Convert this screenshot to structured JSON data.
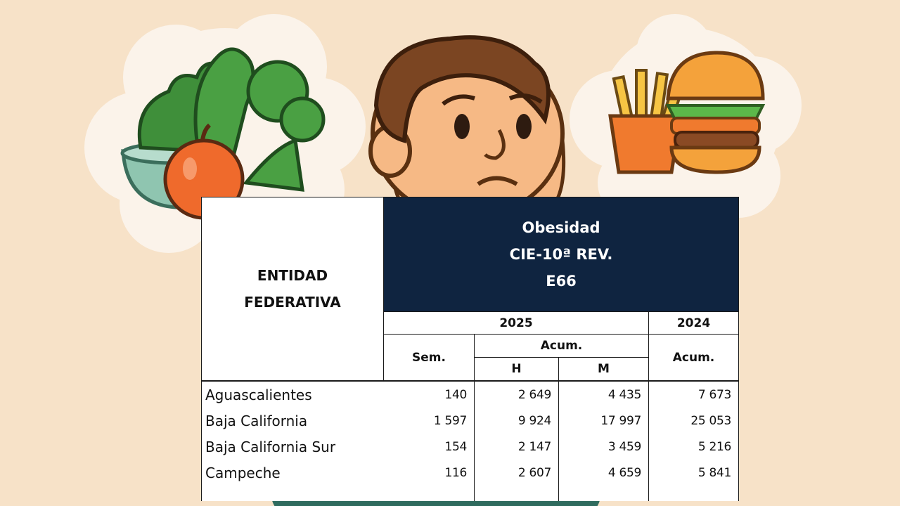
{
  "table": {
    "entity_header_line1": "ENTIDAD",
    "entity_header_line2": "FEDERATIVA",
    "disease_name": "Obesidad",
    "classification": "CIE-10ª REV.",
    "code": "E66",
    "year_current": "2025",
    "year_previous": "2024",
    "col_sem": "Sem.",
    "col_acum": "Acum.",
    "col_h": "H",
    "col_m": "M",
    "col_acum_prev": "Acum.",
    "rows": [
      {
        "entidad": "Aguascalientes",
        "sem": "140",
        "h": "2 649",
        "m": "4 435",
        "acum2024": "7 673"
      },
      {
        "entidad": "Baja California",
        "sem": "1 597",
        "h": "9 924",
        "m": "17 997",
        "acum2024": "25 053"
      },
      {
        "entidad": "Baja California Sur",
        "sem": "154",
        "h": "2 147",
        "m": "3 459",
        "acum2024": "5 216"
      },
      {
        "entidad": "Campeche",
        "sem": "116",
        "h": "2 607",
        "m": "4 659",
        "acum2024": "5 841"
      }
    ]
  },
  "colors": {
    "background": "#f7e2c8",
    "header_fill": "#0f2440",
    "header_text": "#ffffff"
  },
  "icons": [
    "thought-cloud-icon",
    "vegetables-icon",
    "apple-icon",
    "fries-icon",
    "burger-icon",
    "worried-man-icon"
  ]
}
